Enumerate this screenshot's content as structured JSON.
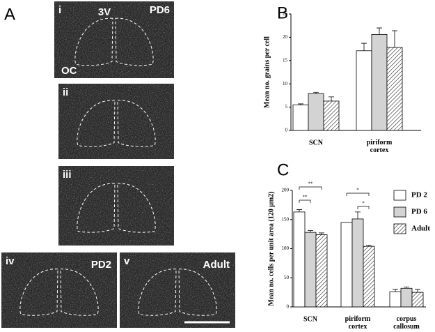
{
  "panel_a": {
    "label": "A",
    "images": [
      {
        "label": "i",
        "tags": [
          "3V",
          "PD6",
          "OC"
        ]
      },
      {
        "label": "ii",
        "tags": []
      },
      {
        "label": "iii",
        "tags": []
      },
      {
        "label": "iv",
        "tags": [
          "PD2"
        ]
      },
      {
        "label": "v",
        "tags": [
          "Adult"
        ]
      }
    ]
  },
  "chart_data": [
    {
      "type": "bar",
      "panel": "B",
      "ylabel": "Mean no. grains per cell",
      "categories": [
        "SCN",
        "piriform cortex"
      ],
      "ylim": [
        0,
        25
      ],
      "yticks": [
        0,
        5,
        10,
        15,
        20,
        25
      ],
      "series": [
        {
          "color": "#ffffff",
          "values": [
            5.5,
            17.1
          ],
          "errors": [
            0.2,
            1.6
          ]
        },
        {
          "color": "#d3d3d3",
          "values": [
            7.9,
            20.6
          ],
          "errors": [
            0.3,
            1.4
          ]
        },
        {
          "color": "#ffffff",
          "hatch": true,
          "values": [
            6.3,
            17.8
          ],
          "errors": [
            0.9,
            3.6
          ]
        }
      ]
    },
    {
      "type": "bar",
      "panel": "C",
      "ylabel": "Mean no. cells per unit area (120 μm2)",
      "categories": [
        "SCN",
        "piriform cortex",
        "corpus callosum"
      ],
      "ylim": [
        0,
        200
      ],
      "yticks": [
        0,
        50,
        100,
        150,
        200
      ],
      "annotations": [
        "**",
        "**",
        "*",
        "*"
      ],
      "series": [
        {
          "name": "PD 2",
          "color": "#ffffff",
          "values": [
            163,
            145,
            26
          ],
          "errors": [
            4,
            null,
            4
          ]
        },
        {
          "name": "PD 6",
          "color": "#d3d3d3",
          "values": [
            128,
            151,
            32
          ],
          "errors": [
            3,
            12,
            2
          ]
        },
        {
          "name": "Adult",
          "color": "#ffffff",
          "hatch": true,
          "values": [
            124,
            104,
            25
          ],
          "errors": [
            3,
            2,
            5
          ]
        }
      ]
    }
  ]
}
